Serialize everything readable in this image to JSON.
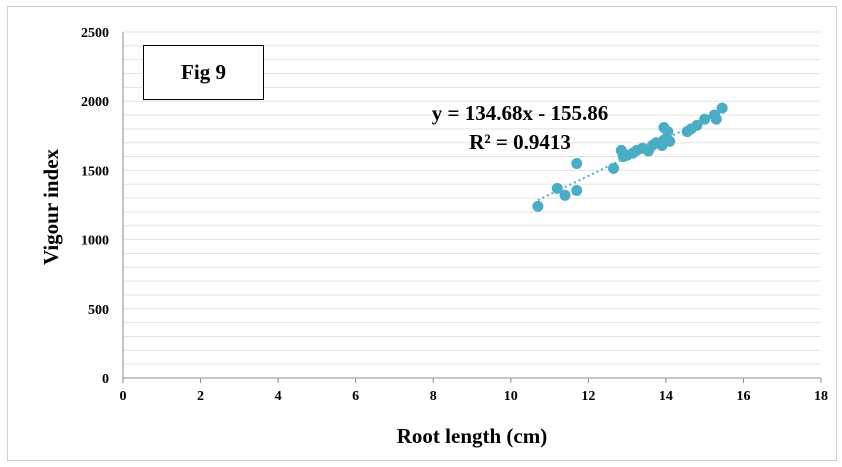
{
  "chart_data": {
    "type": "scatter",
    "label_box": "Fig 9",
    "xlabel": "Root length (cm)",
    "ylabel": "Vigour index",
    "xlim": [
      0,
      18
    ],
    "ylim": [
      0,
      2500
    ],
    "xticks": [
      "0",
      "2",
      "4",
      "6",
      "8",
      "10",
      "12",
      "14",
      "16",
      "18"
    ],
    "yticks": [
      "0",
      "500",
      "1000",
      "1500",
      "2000",
      "2500"
    ],
    "grid": "horizontal, every 100 units",
    "marker_color": "#4BACC6",
    "trendline": {
      "type": "linear",
      "style": "dotted",
      "slope": 134.68,
      "intercept": -155.86,
      "x_range": [
        10.7,
        15.5
      ],
      "equation": "y = 134.68x - 155.86",
      "r_squared": "R² = 0.9413"
    },
    "points": [
      {
        "x": 10.7,
        "y": 1240
      },
      {
        "x": 11.2,
        "y": 1370
      },
      {
        "x": 11.4,
        "y": 1320
      },
      {
        "x": 11.7,
        "y": 1355
      },
      {
        "x": 11.7,
        "y": 1550
      },
      {
        "x": 12.65,
        "y": 1515
      },
      {
        "x": 12.85,
        "y": 1645
      },
      {
        "x": 12.9,
        "y": 1600
      },
      {
        "x": 13.0,
        "y": 1610
      },
      {
        "x": 13.15,
        "y": 1625
      },
      {
        "x": 13.25,
        "y": 1645
      },
      {
        "x": 13.4,
        "y": 1660
      },
      {
        "x": 13.55,
        "y": 1640
      },
      {
        "x": 13.65,
        "y": 1680
      },
      {
        "x": 13.75,
        "y": 1700
      },
      {
        "x": 13.9,
        "y": 1680
      },
      {
        "x": 13.95,
        "y": 1720
      },
      {
        "x": 13.95,
        "y": 1810
      },
      {
        "x": 14.05,
        "y": 1780
      },
      {
        "x": 14.1,
        "y": 1710
      },
      {
        "x": 14.55,
        "y": 1780
      },
      {
        "x": 14.65,
        "y": 1800
      },
      {
        "x": 14.8,
        "y": 1825
      },
      {
        "x": 15.0,
        "y": 1870
      },
      {
        "x": 15.25,
        "y": 1900
      },
      {
        "x": 15.3,
        "y": 1870
      },
      {
        "x": 15.45,
        "y": 1950
      }
    ]
  }
}
